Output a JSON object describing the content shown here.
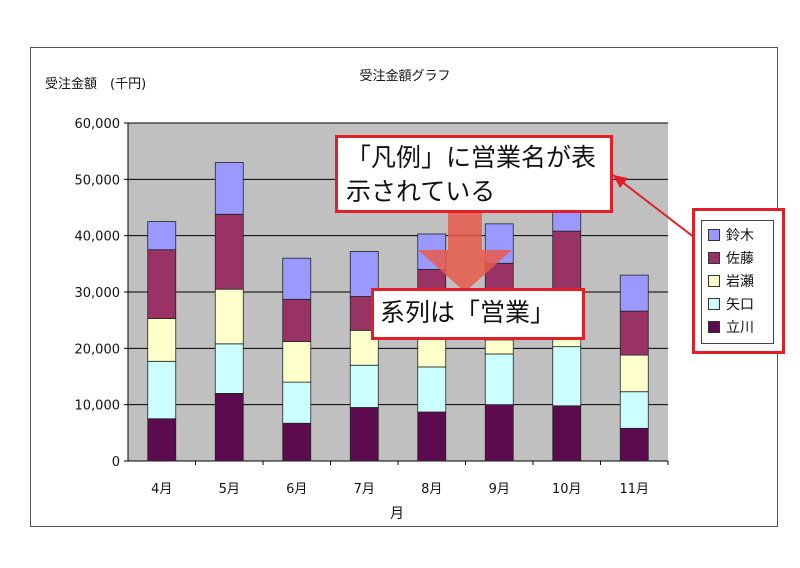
{
  "chart_data": {
    "type": "bar",
    "stacked": true,
    "title": "受注金額グラフ",
    "ylabel": "受注金額　(千円)",
    "xlabel": "月",
    "categories": [
      "4月",
      "5月",
      "6月",
      "7月",
      "8月",
      "9月",
      "10月",
      "11月"
    ],
    "ylim": [
      0,
      60000
    ],
    "yticks": [
      "60,000",
      "50,000",
      "40,000",
      "30,000",
      "20,000",
      "10,000",
      "0"
    ],
    "ytick_values": [
      60000,
      50000,
      40000,
      30000,
      20000,
      10000,
      0
    ],
    "grid": true,
    "legend_position": "right",
    "series": [
      {
        "name": "立川",
        "color": "#5c0b4f",
        "values": [
          7500,
          12000,
          6700,
          9500,
          8700,
          10000,
          9800,
          5800
        ]
      },
      {
        "name": "矢口",
        "color": "#ccffff",
        "values": [
          10200,
          8800,
          7300,
          7500,
          8000,
          9000,
          10500,
          6500
        ]
      },
      {
        "name": "岩瀬",
        "color": "#ffffcc",
        "values": [
          7600,
          9700,
          7200,
          6200,
          5300,
          2500,
          1500,
          6500
        ]
      },
      {
        "name": "佐藤",
        "color": "#993366",
        "values": [
          12200,
          13300,
          7500,
          6000,
          12000,
          13600,
          19000,
          7800
        ]
      },
      {
        "name": "鈴木",
        "color": "#9999ff",
        "values": [
          5000,
          9200,
          7300,
          8000,
          6300,
          7000,
          6200,
          6400
        ]
      }
    ],
    "plot_bg": "#c0c0c0"
  },
  "annotations": {
    "legend_callout": "「凡例」に営業名が表示されている",
    "series_callout": "系列は「営業」",
    "highlight_color": "#e41e26"
  }
}
